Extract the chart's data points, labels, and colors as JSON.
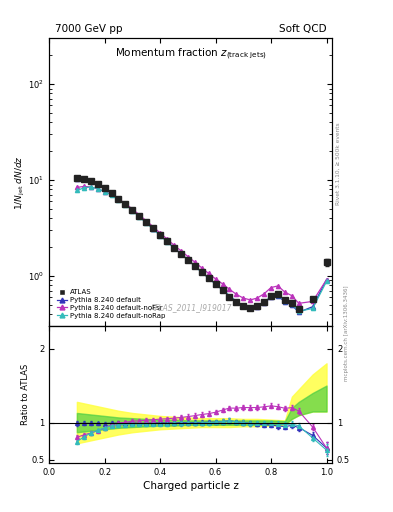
{
  "title_top_left": "7000 GeV pp",
  "title_top_right": "Soft QCD",
  "main_title": "Momentum fraction z",
  "main_title_sub": "(track jets)",
  "xlabel": "Charged particle z",
  "ylabel_main": "1/N$_{jet}$ dN/dz",
  "ylabel_ratio": "Ratio to ATLAS",
  "right_label_top": "Rivet 3.1.10, ≥ 500k events",
  "right_label_bot": "mcplots.cern.ch [arXiv:1306.3436]",
  "watermark": "ATLAS_2011_I919017",
  "z_values": [
    0.1,
    0.125,
    0.15,
    0.175,
    0.2,
    0.225,
    0.25,
    0.275,
    0.3,
    0.325,
    0.35,
    0.375,
    0.4,
    0.425,
    0.45,
    0.475,
    0.5,
    0.525,
    0.55,
    0.575,
    0.6,
    0.625,
    0.65,
    0.675,
    0.7,
    0.725,
    0.75,
    0.775,
    0.8,
    0.825,
    0.85,
    0.875,
    0.9,
    0.95,
    1.0
  ],
  "atlas_y": [
    10.5,
    10.3,
    9.9,
    9.1,
    8.2,
    7.3,
    6.4,
    5.7,
    4.9,
    4.25,
    3.65,
    3.15,
    2.68,
    2.32,
    1.98,
    1.72,
    1.48,
    1.28,
    1.1,
    0.95,
    0.82,
    0.71,
    0.61,
    0.54,
    0.49,
    0.47,
    0.49,
    0.54,
    0.62,
    0.65,
    0.57,
    0.52,
    0.45,
    0.58,
    1.4
  ],
  "atlas_yerr": [
    0.35,
    0.3,
    0.25,
    0.22,
    0.2,
    0.18,
    0.16,
    0.14,
    0.12,
    0.1,
    0.09,
    0.08,
    0.07,
    0.06,
    0.055,
    0.05,
    0.045,
    0.04,
    0.035,
    0.03,
    0.025,
    0.022,
    0.019,
    0.017,
    0.015,
    0.015,
    0.015,
    0.017,
    0.02,
    0.022,
    0.02,
    0.018,
    0.018,
    0.025,
    0.12
  ],
  "py_default_y": [
    10.4,
    10.2,
    9.8,
    9.0,
    8.1,
    7.25,
    6.35,
    5.65,
    4.88,
    4.2,
    3.62,
    3.13,
    2.67,
    2.31,
    1.97,
    1.72,
    1.48,
    1.28,
    1.1,
    0.955,
    0.825,
    0.72,
    0.625,
    0.545,
    0.49,
    0.465,
    0.48,
    0.525,
    0.6,
    0.62,
    0.54,
    0.5,
    0.42,
    0.48,
    0.92
  ],
  "py_nofsr_y": [
    8.4,
    8.6,
    8.5,
    8.1,
    7.6,
    7.1,
    6.35,
    5.72,
    5.0,
    4.35,
    3.77,
    3.27,
    2.81,
    2.44,
    2.1,
    1.84,
    1.6,
    1.4,
    1.22,
    1.065,
    0.935,
    0.83,
    0.73,
    0.645,
    0.59,
    0.565,
    0.59,
    0.655,
    0.76,
    0.79,
    0.68,
    0.625,
    0.52,
    0.545,
    0.92
  ],
  "py_norap_y": [
    7.8,
    8.3,
    8.5,
    8.15,
    7.6,
    7.0,
    6.2,
    5.55,
    4.82,
    4.15,
    3.58,
    3.1,
    2.64,
    2.28,
    1.96,
    1.7,
    1.47,
    1.27,
    1.095,
    0.95,
    0.825,
    0.72,
    0.625,
    0.545,
    0.49,
    0.465,
    0.485,
    0.535,
    0.615,
    0.64,
    0.555,
    0.51,
    0.43,
    0.46,
    0.88
  ],
  "atlas_color": "#222222",
  "py_default_color": "#3333bb",
  "py_nofsr_color": "#bb33bb",
  "py_norap_color": "#33bbbb",
  "band_z": [
    0.1,
    0.15,
    0.2,
    0.25,
    0.3,
    0.35,
    0.4,
    0.45,
    0.5,
    0.55,
    0.6,
    0.65,
    0.7,
    0.75,
    0.8,
    0.85,
    0.875,
    0.9,
    0.95,
    1.0
  ],
  "band_yellow_lo": [
    0.72,
    0.76,
    0.8,
    0.84,
    0.87,
    0.89,
    0.91,
    0.92,
    0.93,
    0.94,
    0.94,
    0.94,
    0.95,
    0.95,
    0.96,
    0.97,
    1.05,
    1.1,
    1.15,
    1.15
  ],
  "band_yellow_hi": [
    1.28,
    1.24,
    1.2,
    1.16,
    1.13,
    1.11,
    1.09,
    1.08,
    1.07,
    1.06,
    1.06,
    1.06,
    1.05,
    1.05,
    1.04,
    1.03,
    1.35,
    1.45,
    1.65,
    1.8
  ],
  "band_green_lo": [
    0.87,
    0.89,
    0.91,
    0.93,
    0.94,
    0.95,
    0.96,
    0.96,
    0.97,
    0.97,
    0.97,
    0.97,
    0.97,
    0.97,
    0.97,
    0.98,
    1.05,
    1.1,
    1.15,
    1.15
  ],
  "band_green_hi": [
    1.13,
    1.11,
    1.09,
    1.07,
    1.06,
    1.05,
    1.04,
    1.04,
    1.03,
    1.03,
    1.03,
    1.03,
    1.03,
    1.03,
    1.03,
    1.02,
    1.2,
    1.28,
    1.4,
    1.5
  ],
  "xlim": [
    0.0,
    1.02
  ],
  "ylim_main": [
    0.3,
    300
  ],
  "ylim_ratio": [
    0.45,
    2.3
  ],
  "ratio_yticks": [
    0.5,
    1.0,
    2.0
  ],
  "ratio_yticklabels": [
    "0.5",
    "1",
    "2"
  ]
}
